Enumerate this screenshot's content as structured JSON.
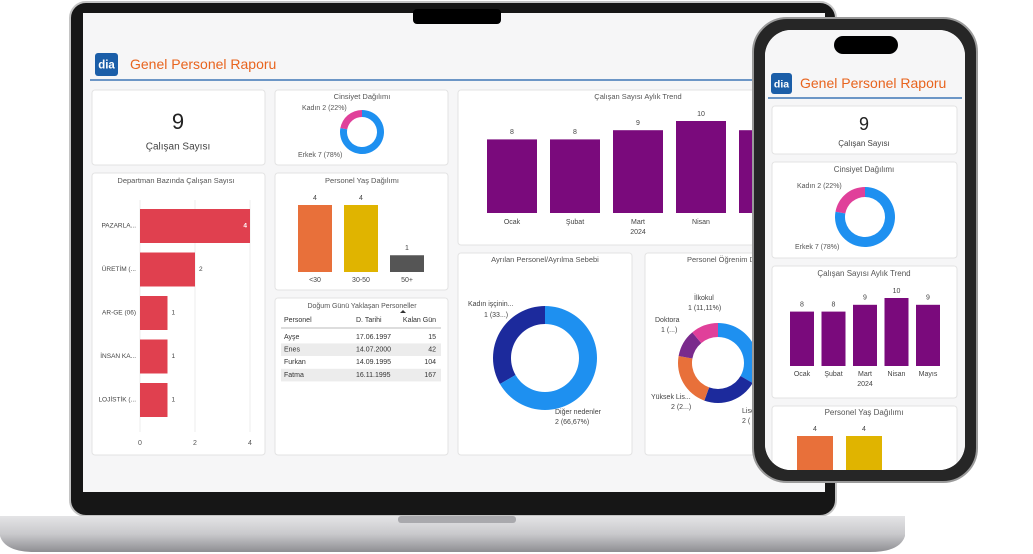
{
  "header": {
    "logo": "dia",
    "title": "Genel Personel Raporu"
  },
  "kpi": {
    "value": 9,
    "label": "Çalışan Sayısı"
  },
  "charts": {
    "gender": {
      "type": "pie",
      "title": "Cinsiyet Dağılımı",
      "values": [
        2,
        7
      ],
      "value_labels": [
        "Kadın 2 (22%)",
        "Erkek 7 (78%)"
      ],
      "colors": [
        "#e0409a",
        "#1e90f0"
      ]
    },
    "trend": {
      "type": "bar",
      "title": "Çalışan Sayısı Aylık Trend",
      "categories": [
        "Ocak",
        "Şubat",
        "Mart",
        "Nisan",
        "Mayıs"
      ],
      "year": "2024",
      "values": [
        8,
        8,
        9,
        10,
        9
      ],
      "color": "#7a0a7c"
    },
    "departments": {
      "type": "hbar",
      "title": "Departman Bazında Çalışan Sayısı",
      "categories": [
        "PAZARLA...",
        "ÜRETİM (...",
        "AR-GE (06)",
        "İNSAN KA...",
        "LOJİSTİK (..."
      ],
      "values": [
        4,
        2,
        1,
        1,
        1
      ],
      "color": "#e0404f",
      "xlim": [
        0,
        4
      ],
      "xticks": [
        0,
        2,
        4
      ]
    },
    "age": {
      "type": "bar",
      "title": "Personel Yaş Dağılımı",
      "categories": [
        "<30",
        "30-50",
        "50+"
      ],
      "values": [
        4,
        4,
        1
      ],
      "colors": [
        "#e8703a",
        "#e0b400",
        "#555555"
      ]
    },
    "leavers": {
      "type": "pie",
      "title": "Ayrılan Personel/Ayrılma Sebebi",
      "categories": [
        "Kadın işçinin...",
        "Diğer nedenler"
      ],
      "values": [
        1,
        2
      ],
      "value_labels": [
        "1 (33...)",
        "2 (66,67%)"
      ],
      "colors": [
        "#1c2a9c",
        "#1e90f0"
      ]
    },
    "education": {
      "type": "pie",
      "title": "Personel Öğrenim D",
      "categories": [
        null,
        "Lise",
        "Yüksek Lis...",
        "Doktora",
        "İlkokul"
      ],
      "values": [
        3,
        2,
        2,
        1,
        1
      ],
      "value_labels": [
        null,
        "2 (",
        "2 (2...)",
        "1 (...)",
        "1 (11,11%)"
      ],
      "colors": [
        "#1e90f0",
        "#1c2a9c",
        "#e8703a",
        "#7a2a8c",
        "#e0409a"
      ]
    }
  },
  "birthday_table": {
    "title": "Doğum Günü Yaklaşan Personeller",
    "columns": [
      "Personel",
      "D. Tarihi",
      "Kalan Gün"
    ],
    "rows": [
      [
        "Ayşe",
        "17.06.1997",
        15
      ],
      [
        "Enes",
        "14.07.2000",
        42
      ],
      [
        "Furkan",
        "14.09.1995",
        104
      ],
      [
        "Fatma",
        "16.11.1995",
        167
      ]
    ]
  }
}
